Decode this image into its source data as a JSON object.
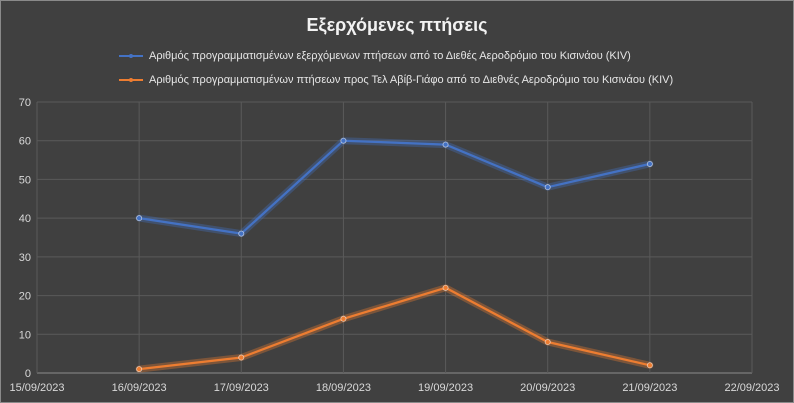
{
  "chart_data": {
    "type": "line",
    "title": "Εξερχόμενες πτήσεις",
    "x": [
      "15/09/2023",
      "16/09/2023",
      "17/09/2023",
      "18/09/2023",
      "19/09/2023",
      "20/09/2023",
      "21/09/2023",
      "22/09/2023"
    ],
    "series": [
      {
        "name": "Αριθμός προγραμματισμένων εξερχόμενων πτήσεων  από το Διεθές Αεροδρόμιο του Κισινάου (KIV)",
        "values": [
          null,
          40,
          36,
          60,
          59,
          48,
          54,
          null
        ],
        "color": "#4472c4"
      },
      {
        "name": "Αριθμός προγραμματισμένων πτήσεων προς Τελ Αβίβ-Γιάφο από το Διεθνές Αεροδρόμιο του Κισινάου (KIV)",
        "values": [
          null,
          1,
          4,
          14,
          22,
          8,
          2,
          null
        ],
        "color": "#ed7d31"
      }
    ],
    "ylim": [
      0,
      70
    ],
    "yticks": [
      0,
      10,
      20,
      30,
      40,
      50,
      60,
      70
    ],
    "grid": true,
    "legend_position": "top"
  }
}
